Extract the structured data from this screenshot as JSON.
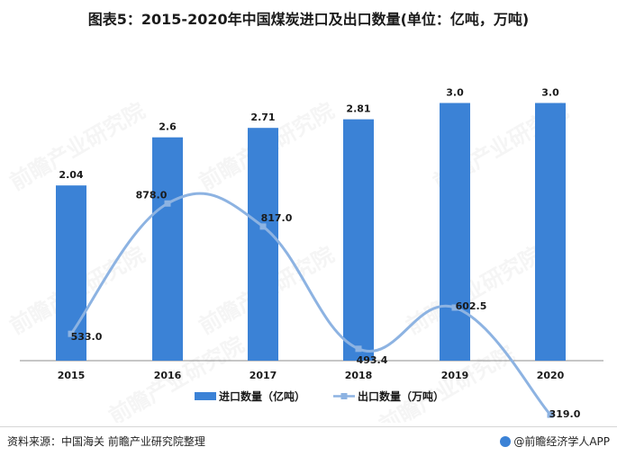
{
  "title": "图表5：2015-2020年中国煤炭进口及出口数量(单位：亿吨，万吨)",
  "source": "资料来源：中国海关 前瞻产业研究院整理",
  "brand": "@前瞻经济学人APP",
  "watermark": "前瞻产业研究院",
  "colors": {
    "bar": "#3b82d6",
    "line": "#8db3e2",
    "marker": "#8db3e2",
    "text": "#1a1a1a",
    "axis": "#8c8c8c"
  },
  "chart_data": {
    "type": "bar",
    "categories": [
      "2015",
      "2016",
      "2017",
      "2018",
      "2019",
      "2020"
    ],
    "series": [
      {
        "name": "进口数量（亿吨）",
        "type": "bar",
        "values": [
          2.04,
          2.6,
          2.71,
          2.81,
          3.0,
          3.0
        ],
        "labels": [
          "2.04",
          "2.6",
          "2.71",
          "2.81",
          "3.0",
          "3.0"
        ]
      },
      {
        "name": "出口数量（万吨）",
        "type": "line",
        "values": [
          533.0,
          878.0,
          817.0,
          493.4,
          602.5,
          319.0
        ],
        "labels": [
          "533.0",
          "878.0",
          "817.0",
          "493.4",
          "602.5",
          "319.0"
        ]
      }
    ],
    "legend_position": "bottom"
  }
}
